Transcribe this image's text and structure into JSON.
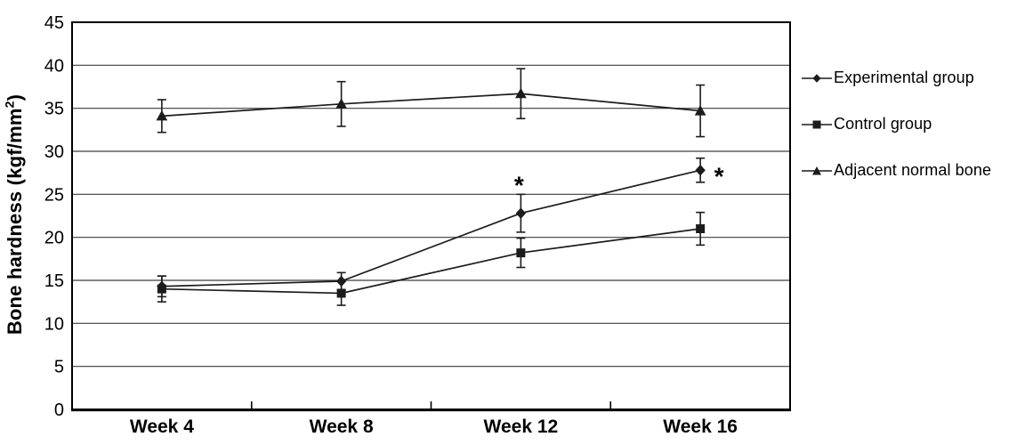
{
  "chart_data": {
    "type": "line",
    "title": "",
    "xlabel": "",
    "ylabel": "Bone hardness (kgf/mm2)",
    "ylabel_parts": {
      "prefix": "Bone hardness (kgf/mm",
      "sup": "2",
      "suffix": ")"
    },
    "categories": [
      "Week 4",
      "Week 8",
      "Week 12",
      "Week 16"
    ],
    "ylim": [
      0,
      45
    ],
    "ytick_step": 5,
    "ytick_labels": [
      "0",
      "5",
      "10",
      "15",
      "20",
      "25",
      "30",
      "35",
      "40",
      "45"
    ],
    "grid": "horizontal",
    "legend_position": "right-outside",
    "series": [
      {
        "name": "Experimental group",
        "marker": "diamond",
        "values": [
          14.3,
          14.9,
          22.8,
          27.8
        ],
        "errors": [
          1.2,
          1.0,
          2.2,
          1.4
        ]
      },
      {
        "name": "Control group",
        "marker": "square",
        "values": [
          14.0,
          13.5,
          18.2,
          21.0
        ],
        "errors": [
          1.5,
          1.4,
          1.7,
          1.9
        ]
      },
      {
        "name": "Adjacent normal bone",
        "marker": "triangle",
        "values": [
          34.1,
          35.5,
          36.7,
          34.7
        ],
        "errors": [
          1.9,
          2.6,
          2.9,
          3.0
        ]
      }
    ],
    "annotations": [
      {
        "text": "*",
        "series": "Experimental group",
        "category": "Week 12",
        "position": "above"
      },
      {
        "text": "*",
        "series": "Experimental group",
        "category": "Week 16",
        "position": "right"
      }
    ],
    "colors": {
      "line": "#1c1c1c",
      "grid": "#3d3d3d",
      "border": "#000000",
      "text": "#000000",
      "background": "#ffffff"
    }
  }
}
